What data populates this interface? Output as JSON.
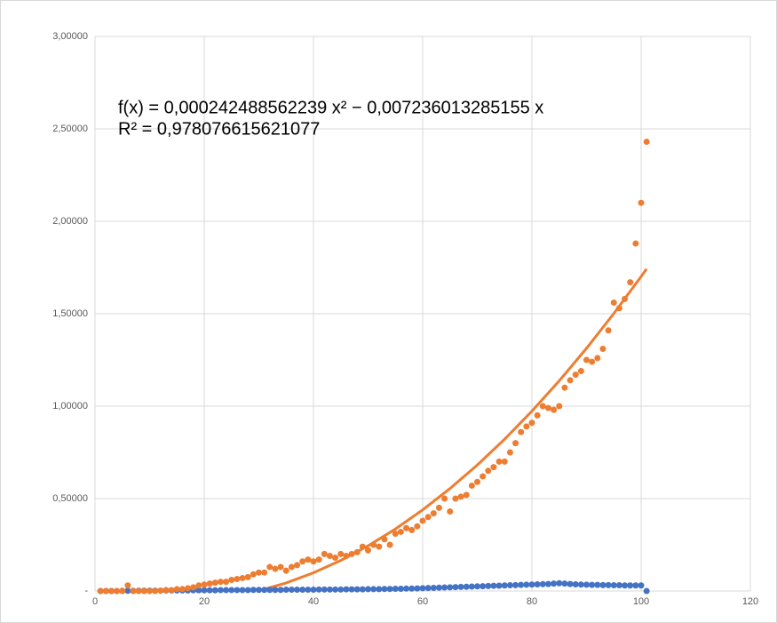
{
  "chart_data": {
    "type": "scatter",
    "x": [
      1,
      2,
      3,
      4,
      5,
      6,
      7,
      8,
      9,
      10,
      11,
      12,
      13,
      14,
      15,
      16,
      17,
      18,
      19,
      20,
      21,
      22,
      23,
      24,
      25,
      26,
      27,
      28,
      29,
      30,
      31,
      32,
      33,
      34,
      35,
      36,
      37,
      38,
      39,
      40,
      41,
      42,
      43,
      44,
      45,
      46,
      47,
      48,
      49,
      50,
      51,
      52,
      53,
      54,
      55,
      56,
      57,
      58,
      59,
      60,
      61,
      62,
      63,
      64,
      65,
      66,
      67,
      68,
      69,
      70,
      71,
      72,
      73,
      74,
      75,
      76,
      77,
      78,
      79,
      80,
      81,
      82,
      83,
      84,
      85,
      86,
      87,
      88,
      89,
      90,
      91,
      92,
      93,
      94,
      95,
      96,
      97,
      98,
      99,
      100,
      101
    ],
    "series": [
      {
        "color": "#4472c4",
        "values": [
          0,
          0,
          0,
          0,
          0.001,
          0.001,
          0.001,
          0.002,
          0.002,
          0.002,
          0.002,
          0.002,
          0.003,
          0.003,
          0.003,
          0.003,
          0.003,
          0.004,
          0.004,
          0.004,
          0.004,
          0.004,
          0.005,
          0.005,
          0.005,
          0.005,
          0.005,
          0.005,
          0.006,
          0.006,
          0.006,
          0.006,
          0.006,
          0.006,
          0.007,
          0.007,
          0.007,
          0.007,
          0.007,
          0.007,
          0.008,
          0.008,
          0.008,
          0.008,
          0.008,
          0.009,
          0.009,
          0.009,
          0.009,
          0.01,
          0.01,
          0.01,
          0.011,
          0.011,
          0.012,
          0.012,
          0.013,
          0.013,
          0.014,
          0.015,
          0.016,
          0.017,
          0.018,
          0.019,
          0.02,
          0.021,
          0.022,
          0.023,
          0.024,
          0.025,
          0.026,
          0.027,
          0.028,
          0.029,
          0.03,
          0.031,
          0.032,
          0.033,
          0.034,
          0.035,
          0.036,
          0.037,
          0.038,
          0.04,
          0.042,
          0.04,
          0.038,
          0.036,
          0.035,
          0.034,
          0.033,
          0.033,
          0.032,
          0.032,
          0.031,
          0.031,
          0.03,
          0.03,
          0.03,
          0.03,
          0
        ]
      },
      {
        "color": "#ed7d31",
        "values": [
          0,
          0,
          0,
          0,
          0,
          0.03,
          0,
          0,
          0,
          0,
          0,
          0.002,
          0.005,
          0.005,
          0.01,
          0.01,
          0.015,
          0.02,
          0.03,
          0.035,
          0.04,
          0.045,
          0.05,
          0.05,
          0.06,
          0.065,
          0.07,
          0.075,
          0.09,
          0.1,
          0.1,
          0.13,
          0.12,
          0.13,
          0.11,
          0.13,
          0.14,
          0.16,
          0.17,
          0.16,
          0.17,
          0.2,
          0.19,
          0.18,
          0.2,
          0.19,
          0.2,
          0.21,
          0.24,
          0.22,
          0.25,
          0.24,
          0.28,
          0.25,
          0.31,
          0.32,
          0.34,
          0.33,
          0.35,
          0.38,
          0.4,
          0.42,
          0.45,
          0.5,
          0.43,
          0.5,
          0.51,
          0.52,
          0.57,
          0.59,
          0.62,
          0.65,
          0.67,
          0.7,
          0.7,
          0.75,
          0.8,
          0.86,
          0.89,
          0.91,
          0.95,
          1.0,
          0.99,
          0.98,
          1.0,
          1.1,
          1.14,
          1.17,
          1.19,
          1.25,
          1.24,
          1.26,
          1.31,
          1.41,
          1.56,
          1.53,
          1.58,
          1.67,
          1.88,
          2.1,
          2.43
        ]
      }
    ],
    "trendline": {
      "color": "#ed7d31",
      "x": [
        30,
        35,
        40,
        45,
        50,
        55,
        60,
        65,
        70,
        75,
        80,
        85,
        90,
        95,
        100,
        101
      ],
      "values": [
        0.0012,
        0.0437,
        0.0986,
        0.1654,
        0.2444,
        0.3355,
        0.4388,
        0.5542,
        0.6817,
        0.8213,
        0.973,
        1.1369,
        1.313,
        1.5011,
        1.7013,
        1.7428
      ]
    },
    "annotations": [
      "f(x) = 0,000242488562239 x² − 0,007236013285155 x",
      "R² = 0,978076615621077"
    ],
    "xlim": [
      0,
      120
    ],
    "xticks": [
      0,
      20,
      40,
      60,
      80,
      100,
      120
    ],
    "ylim": [
      0,
      3
    ],
    "yticks": [
      {
        "value": 0,
        "label": "-"
      },
      {
        "value": 0.5,
        "label": "0,50000"
      },
      {
        "value": 1,
        "label": "1,00000"
      },
      {
        "value": 1.5,
        "label": "1,50000"
      },
      {
        "value": 2,
        "label": "2,00000"
      },
      {
        "value": 2.5,
        "label": "2,50000"
      },
      {
        "value": 3,
        "label": "3,00000"
      }
    ],
    "grid": true
  }
}
